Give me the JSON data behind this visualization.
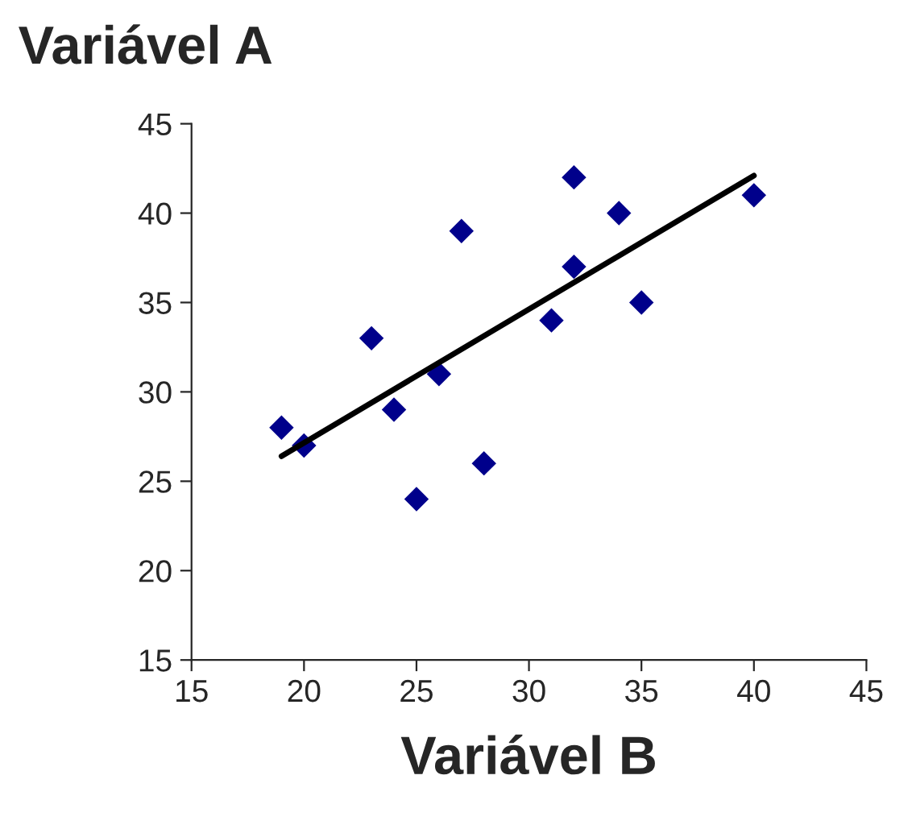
{
  "chart_data": {
    "type": "scatter",
    "xlabel": "Variável B",
    "ylabel": "Variável A",
    "x": [
      19,
      20,
      23,
      24,
      25,
      26,
      27,
      28,
      31,
      32,
      32,
      34,
      35,
      40
    ],
    "series": [
      {
        "color": "#00008b",
        "marker": "diamond",
        "values": [
          28,
          27,
          33,
          29,
          24,
          31,
          39,
          26,
          34,
          42,
          37,
          40,
          35,
          41
        ]
      },
      {
        "type": "line",
        "color": "#000000",
        "marker": "none",
        "line_style": "solid",
        "x": [
          19,
          40
        ],
        "values": [
          26.4,
          42.1
        ]
      }
    ],
    "xlim": [
      15,
      45
    ],
    "xticks": [
      15,
      20,
      25,
      30,
      35,
      40,
      45
    ],
    "ylim": [
      15,
      45
    ],
    "yticks": [
      15,
      20,
      25,
      30,
      35,
      40,
      45
    ],
    "grid": false,
    "legend": false
  }
}
